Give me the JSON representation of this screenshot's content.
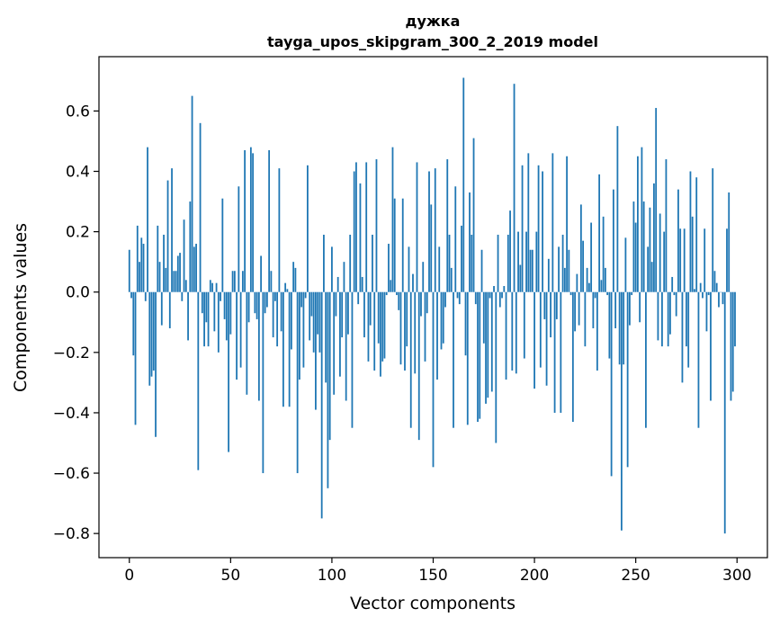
{
  "chart_data": {
    "type": "bar",
    "title_line1": "дужка",
    "title_line2": "tayga_upos_skipgram_300_2_2019 model",
    "xlabel": "Vector components",
    "ylabel": "Components values",
    "xlim": [
      -15,
      315
    ],
    "ylim": [
      -0.88,
      0.78
    ],
    "x_ticks": [
      0,
      50,
      100,
      150,
      200,
      250,
      300
    ],
    "x_tick_labels": [
      "0",
      "50",
      "100",
      "150",
      "200",
      "250",
      "300"
    ],
    "y_ticks": [
      -0.8,
      -0.6,
      -0.4,
      -0.2,
      0.0,
      0.2,
      0.4,
      0.6
    ],
    "y_tick_labels": [
      "−0.8",
      "−0.6",
      "−0.4",
      "−0.2",
      "0.0",
      "0.2",
      "0.4",
      "0.6"
    ],
    "bar_color": "#1f77b4",
    "values": [
      0.14,
      -0.02,
      -0.21,
      -0.44,
      0.22,
      0.1,
      0.18,
      0.16,
      -0.03,
      0.48,
      -0.31,
      -0.28,
      -0.26,
      -0.48,
      0.22,
      0.1,
      -0.11,
      0.19,
      0.08,
      0.37,
      -0.12,
      0.41,
      0.07,
      0.07,
      0.12,
      0.13,
      -0.03,
      0.24,
      0.04,
      -0.16,
      0.3,
      0.65,
      0.15,
      0.16,
      -0.59,
      0.56,
      -0.07,
      -0.18,
      -0.1,
      -0.18,
      0.04,
      0.03,
      -0.13,
      0.03,
      -0.2,
      -0.03,
      0.31,
      -0.09,
      -0.16,
      -0.53,
      -0.14,
      0.07,
      0.07,
      -0.29,
      0.35,
      -0.25,
      0.07,
      0.47,
      -0.34,
      -0.1,
      0.48,
      0.46,
      -0.07,
      -0.09,
      -0.36,
      0.12,
      -0.6,
      -0.07,
      -0.05,
      0.47,
      0.07,
      -0.15,
      -0.03,
      -0.18,
      0.41,
      -0.13,
      -0.38,
      0.03,
      0.01,
      -0.38,
      -0.19,
      0.1,
      0.08,
      -0.6,
      -0.29,
      -0.05,
      -0.25,
      -0.02,
      0.42,
      -0.16,
      -0.08,
      -0.2,
      -0.39,
      -0.14,
      -0.2,
      -0.75,
      0.19,
      -0.3,
      -0.65,
      -0.49,
      0.15,
      -0.34,
      -0.08,
      0.05,
      -0.28,
      -0.15,
      0.1,
      -0.36,
      -0.14,
      0.19,
      -0.45,
      0.4,
      0.43,
      -0.04,
      0.36,
      0.05,
      -0.15,
      0.43,
      -0.23,
      -0.11,
      0.19,
      -0.26,
      0.44,
      -0.17,
      -0.28,
      -0.23,
      -0.22,
      -0.01,
      0.16,
      0.04,
      0.48,
      0.31,
      -0.01,
      -0.06,
      -0.24,
      0.31,
      -0.26,
      -0.18,
      0.15,
      -0.45,
      0.06,
      -0.27,
      0.43,
      -0.49,
      -0.08,
      0.1,
      -0.23,
      -0.07,
      0.4,
      0.29,
      -0.58,
      0.41,
      -0.29,
      0.15,
      -0.19,
      -0.17,
      -0.05,
      0.44,
      0.19,
      0.08,
      -0.45,
      0.35,
      -0.02,
      -0.04,
      0.22,
      0.71,
      -0.21,
      -0.44,
      0.33,
      0.19,
      0.51,
      -0.04,
      -0.43,
      -0.42,
      0.14,
      -0.17,
      -0.37,
      -0.35,
      -0.02,
      -0.33,
      0.02,
      -0.5,
      0.19,
      -0.05,
      -0.02,
      0.02,
      -0.29,
      0.19,
      0.27,
      -0.26,
      0.69,
      -0.27,
      0.2,
      0.09,
      0.42,
      -0.22,
      0.2,
      0.46,
      0.14,
      0.14,
      -0.32,
      0.2,
      0.42,
      -0.25,
      0.4,
      -0.09,
      -0.31,
      0.11,
      -0.15,
      0.46,
      -0.4,
      -0.09,
      0.15,
      -0.4,
      0.19,
      0.08,
      0.45,
      0.14,
      -0.01,
      -0.43,
      -0.13,
      0.06,
      -0.11,
      0.29,
      0.17,
      -0.18,
      0.08,
      0.03,
      0.23,
      -0.12,
      -0.02,
      -0.26,
      0.39,
      0.04,
      0.25,
      0.08,
      -0.01,
      -0.22,
      -0.61,
      0.34,
      -0.12,
      0.55,
      -0.24,
      -0.79,
      -0.24,
      0.18,
      -0.58,
      -0.11,
      -0.01,
      0.3,
      0.23,
      0.45,
      -0.1,
      0.48,
      0.3,
      -0.45,
      0.15,
      0.28,
      0.1,
      0.36,
      0.61,
      -0.16,
      0.26,
      -0.18,
      0.2,
      0.44,
      -0.18,
      -0.14,
      0.05,
      -0.01,
      -0.08,
      0.34,
      0.21,
      -0.3,
      0.21,
      -0.18,
      -0.25,
      0.4,
      0.25,
      0.01,
      0.38,
      -0.45,
      0.03,
      -0.02,
      0.21,
      -0.13,
      -0.01,
      -0.36,
      0.41,
      0.07,
      0.03,
      -0.05,
      0.0,
      -0.04,
      -0.8,
      0.21,
      0.33,
      -0.36,
      -0.33,
      -0.18
    ]
  }
}
